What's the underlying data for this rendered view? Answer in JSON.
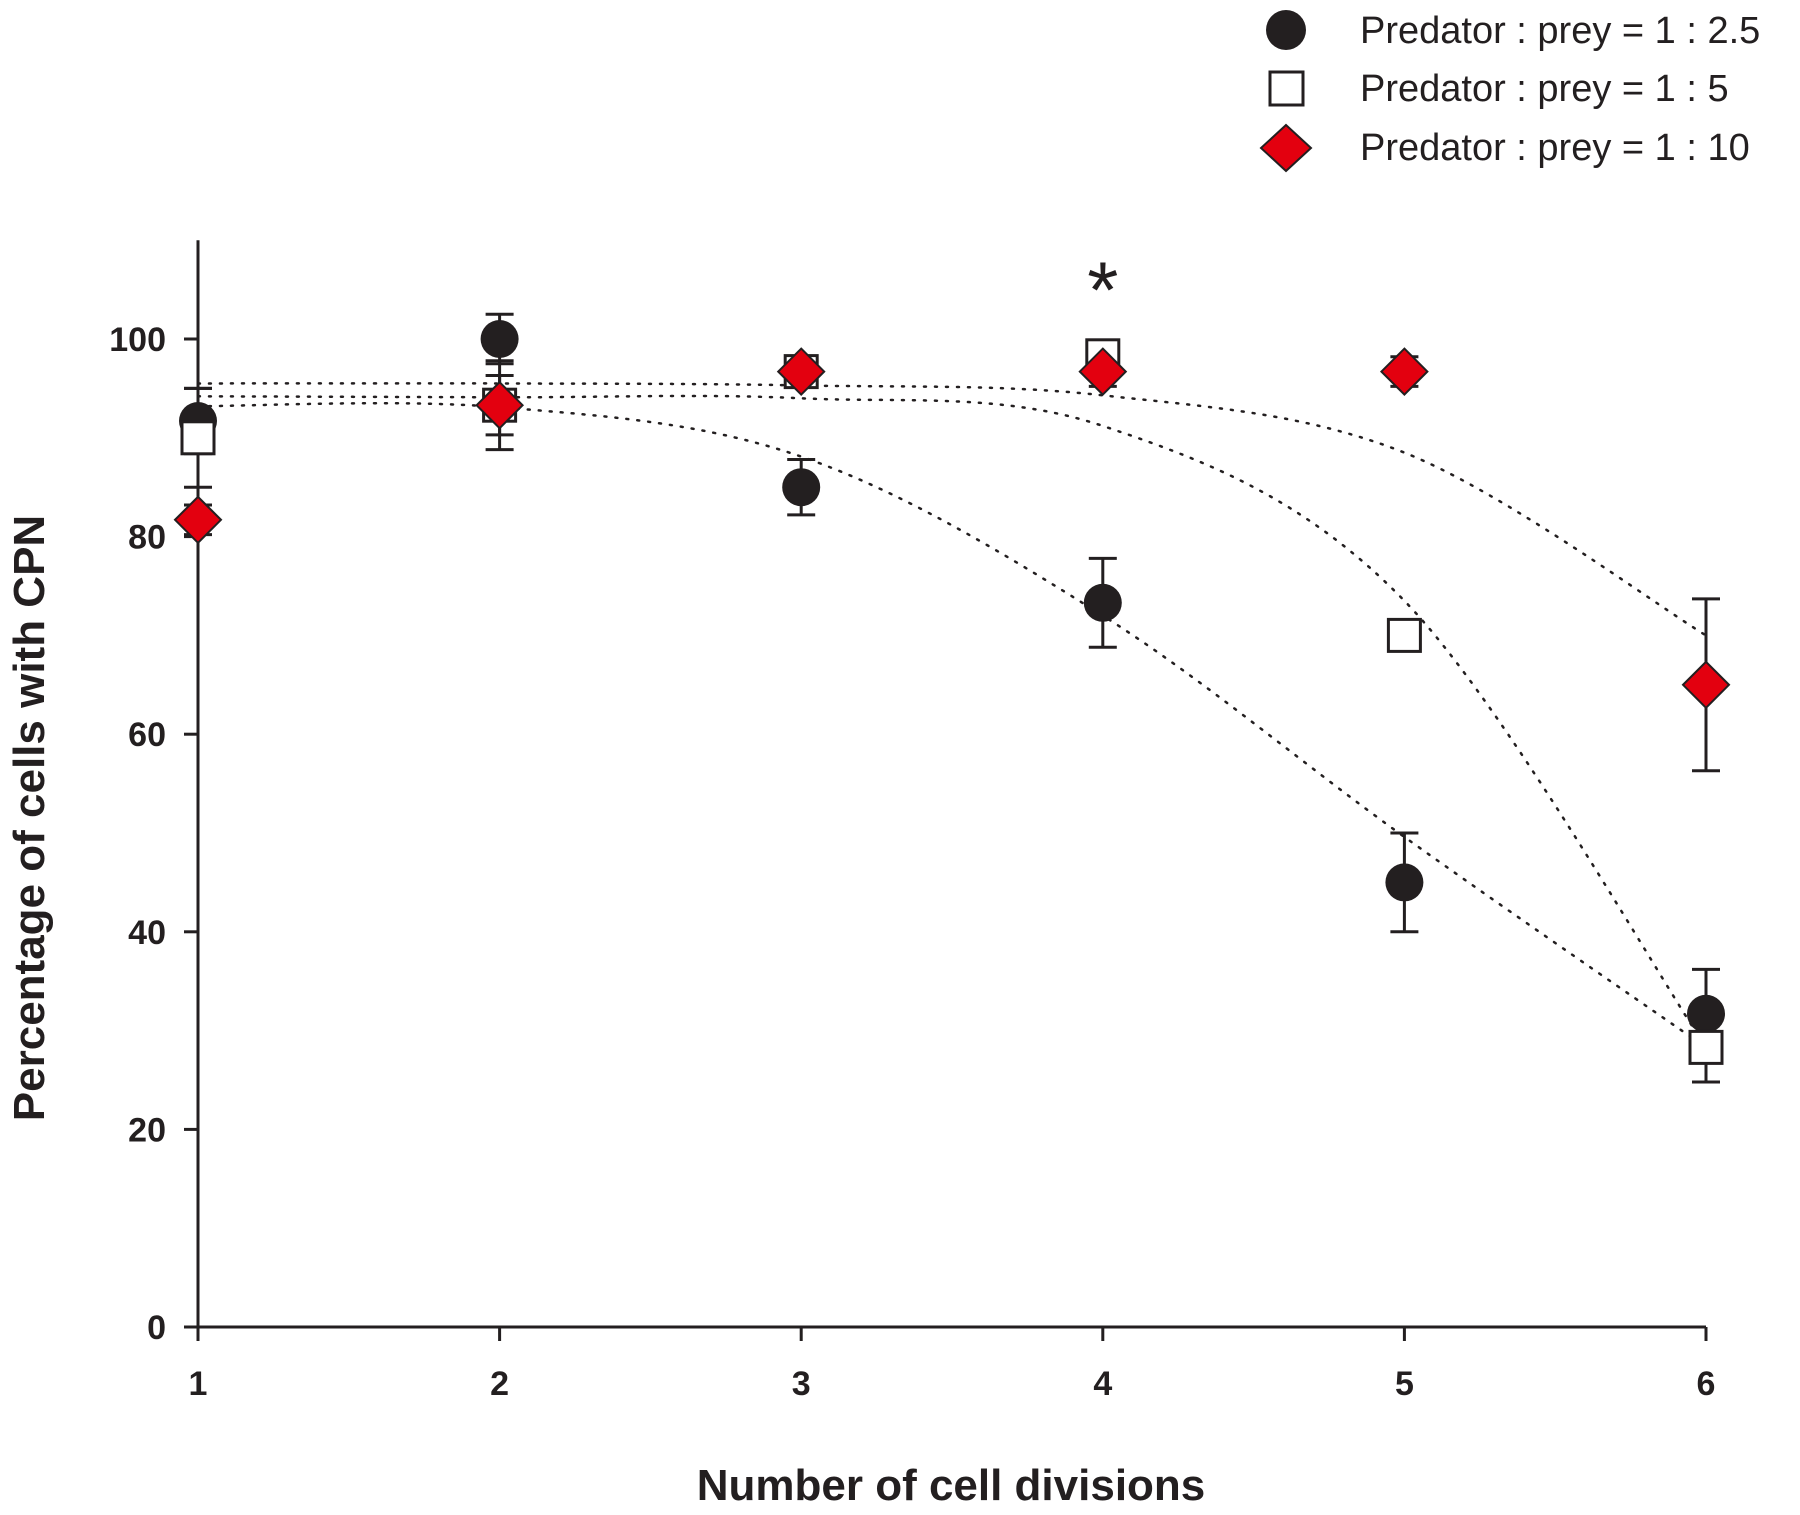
{
  "chart_data": {
    "type": "scatter",
    "title": "",
    "xlabel": "Number of cell divisions",
    "ylabel": "Percentage of cells with CPN",
    "xlim": [
      1,
      6
    ],
    "ylim": [
      0,
      110
    ],
    "x_ticks": [
      "1",
      "2",
      "3",
      "4",
      "5",
      "6"
    ],
    "y_ticks": [
      "0",
      "20",
      "40",
      "60",
      "80",
      "100"
    ],
    "grid": false,
    "legend_position": "top-right",
    "series": [
      {
        "name": "Predator : prey =  1 : 2.5",
        "marker": "filled-circle",
        "color": "#231f20",
        "x": [
          1,
          2,
          3,
          4,
          5,
          6
        ],
        "y": [
          91.7,
          100,
          85,
          73.3,
          45,
          31.7
        ],
        "error": [
          3.3,
          2.5,
          2.8,
          4.5,
          5,
          4.5
        ],
        "fit": [
          93.2,
          93.1,
          88.1,
          72.0,
          49.6,
          28.3
        ]
      },
      {
        "name": "Predator : prey =  1 : 5",
        "marker": "open-square",
        "color": "#231f20",
        "x": [
          1,
          2,
          3,
          4,
          5,
          6
        ],
        "y": [
          90,
          93.3,
          96.7,
          98.3,
          70,
          28.3
        ],
        "error": [
          5,
          3,
          1.5,
          1,
          0,
          3.5
        ],
        "fit": [
          94.2,
          94.1,
          94.0,
          91.2,
          73.5,
          28.3
        ]
      },
      {
        "name": "Predator : prey =  1 : 10",
        "marker": "diamond",
        "color": "#e3000f",
        "x": [
          1,
          2,
          3,
          4,
          5,
          6
        ],
        "y": [
          81.7,
          93.3,
          96.7,
          96.7,
          96.7,
          65
        ],
        "error": [
          1.5,
          4.5,
          1.5,
          1.5,
          1.5,
          8.7
        ],
        "fit": [
          95.5,
          95.5,
          95.3,
          94.3,
          88.5,
          70.0
        ]
      }
    ],
    "annotations": [
      {
        "text": "*",
        "x": 4,
        "y": 106
      }
    ]
  }
}
